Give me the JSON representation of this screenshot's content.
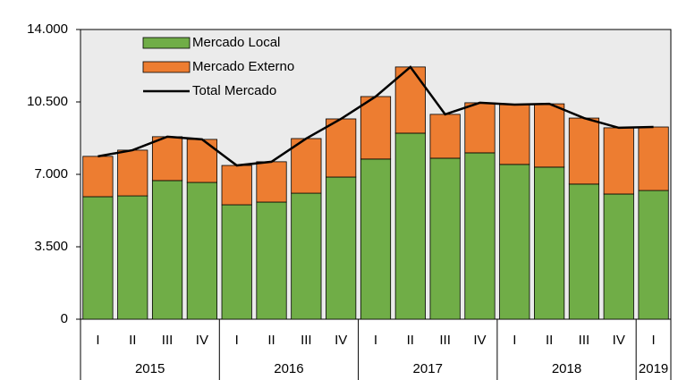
{
  "chart_data": {
    "type": "bar",
    "groups": [
      {
        "name": "2015",
        "categories": [
          "I",
          "II",
          "III",
          "IV"
        ]
      },
      {
        "name": "2016",
        "categories": [
          "I",
          "II",
          "III",
          "IV"
        ]
      },
      {
        "name": "2017",
        "categories": [
          "I",
          "II",
          "III",
          "IV"
        ]
      },
      {
        "name": "2018",
        "categories": [
          "I",
          "II",
          "III",
          "IV"
        ]
      },
      {
        "name": "2019",
        "categories": [
          "I"
        ]
      }
    ],
    "series": [
      {
        "name": "Mercado Local",
        "type": "bar",
        "color": "#70ad47",
        "values": [
          5920,
          5960,
          6700,
          6610,
          5530,
          5660,
          6090,
          6870,
          7740,
          8990,
          7780,
          8040,
          7480,
          7350,
          6530,
          6050,
          6220
        ]
      },
      {
        "name": "Mercado Externo",
        "type": "bar",
        "color": "#ed7d31",
        "values": [
          1950,
          2210,
          2120,
          2080,
          1900,
          1950,
          2640,
          2810,
          3020,
          3200,
          2120,
          2420,
          2890,
          3060,
          3190,
          3200,
          3070
        ]
      },
      {
        "name": "Total Mercado",
        "type": "line",
        "color": "#000000",
        "values": [
          7870,
          8170,
          8820,
          8690,
          7430,
          7610,
          8730,
          9680,
          10760,
          12190,
          9900,
          10460,
          10370,
          10410,
          9720,
          9250,
          9290
        ]
      }
    ],
    "stacked": true,
    "ylim": [
      0,
      14000
    ],
    "yticks": [
      0,
      {
        "value": 3500,
        "label": "3.500"
      },
      {
        "value": 7000,
        "label": "7.000"
      },
      {
        "value": 10500,
        "label": "10.500"
      },
      {
        "value": 14000,
        "label": "14.000"
      }
    ],
    "legend": "upper left"
  }
}
